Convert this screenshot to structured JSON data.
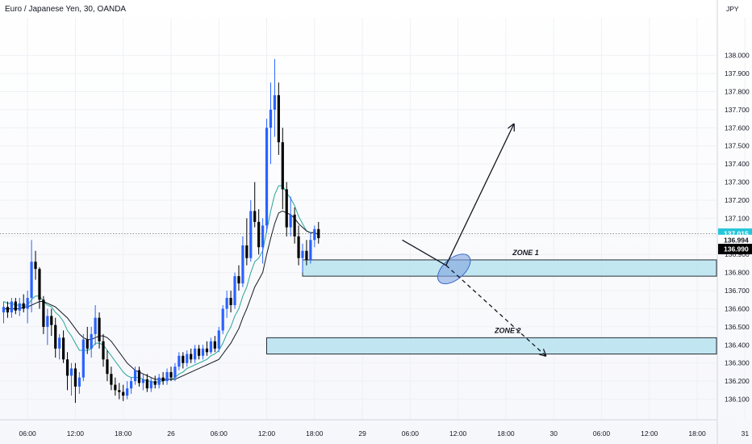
{
  "header": {
    "title": "Euro / Japanese Yen, 30, OANDA"
  },
  "chart_data": {
    "type": "candlestick",
    "symbol": "Euro / Japanese Yen",
    "interval": "30",
    "source": "OANDA",
    "currency_label": "JPY",
    "ylim": [
      136.04,
      138.15
    ],
    "y_ticks": [
      136.1,
      136.2,
      136.3,
      136.4,
      136.5,
      136.6,
      136.7,
      136.8,
      136.9,
      137.0,
      137.1,
      137.2,
      137.3,
      137.4,
      137.5,
      137.6,
      137.7,
      137.8,
      137.9,
      138.0
    ],
    "y_tick_labels": [
      "136.100",
      "136.200",
      "136.300",
      "136.400",
      "136.500",
      "136.600",
      "136.700",
      "136.800",
      "136.900",
      "137.000",
      "137.100",
      "137.200",
      "137.300",
      "137.400",
      "137.500",
      "137.600",
      "137.700",
      "137.800",
      "137.900",
      "138.000"
    ],
    "x_ticks": [
      {
        "bar": 6,
        "label": "06:00"
      },
      {
        "bar": 18,
        "label": "12:00"
      },
      {
        "bar": 30,
        "label": "18:00"
      },
      {
        "bar": 42,
        "label": "26"
      },
      {
        "bar": 54,
        "label": "06:00"
      },
      {
        "bar": 66,
        "label": "12:00"
      },
      {
        "bar": 78,
        "label": "18:00"
      },
      {
        "bar": 90,
        "label": "29"
      },
      {
        "bar": 102,
        "label": "06:00"
      },
      {
        "bar": 114,
        "label": "12:00"
      },
      {
        "bar": 126,
        "label": "18:00"
      },
      {
        "bar": 138,
        "label": "30"
      },
      {
        "bar": 150,
        "label": "06:00"
      },
      {
        "bar": 162,
        "label": "12:00"
      },
      {
        "bar": 174,
        "label": "18:00"
      },
      {
        "bar": 186,
        "label": "31"
      }
    ],
    "total_bars": 193,
    "candles_ohlc": [
      [
        136.58,
        136.64,
        136.52,
        136.61
      ],
      [
        136.61,
        136.64,
        136.55,
        136.58
      ],
      [
        136.58,
        136.66,
        136.55,
        136.64
      ],
      [
        136.64,
        136.66,
        136.57,
        136.59
      ],
      [
        136.59,
        136.66,
        136.56,
        136.63
      ],
      [
        136.63,
        136.68,
        136.58,
        136.6
      ],
      [
        136.6,
        136.7,
        136.52,
        136.66
      ],
      [
        136.66,
        136.98,
        136.58,
        136.86
      ],
      [
        136.86,
        136.92,
        136.76,
        136.82
      ],
      [
        136.82,
        136.83,
        136.6,
        136.65
      ],
      [
        136.65,
        136.67,
        136.46,
        136.5
      ],
      [
        136.5,
        136.6,
        136.4,
        136.56
      ],
      [
        136.56,
        136.6,
        136.45,
        136.51
      ],
      [
        136.51,
        136.55,
        136.33,
        136.38
      ],
      [
        136.38,
        136.46,
        136.32,
        136.44
      ],
      [
        136.44,
        136.48,
        136.3,
        136.32
      ],
      [
        136.32,
        136.36,
        136.15,
        136.23
      ],
      [
        136.23,
        136.3,
        136.12,
        136.27
      ],
      [
        136.27,
        136.3,
        136.08,
        136.17
      ],
      [
        136.17,
        136.25,
        136.13,
        136.22
      ],
      [
        136.22,
        136.46,
        136.2,
        136.43
      ],
      [
        136.43,
        136.5,
        136.35,
        136.38
      ],
      [
        136.38,
        136.5,
        136.33,
        136.46
      ],
      [
        136.46,
        136.62,
        136.4,
        136.55
      ],
      [
        136.55,
        136.58,
        136.38,
        136.42
      ],
      [
        136.42,
        136.46,
        136.28,
        136.32
      ],
      [
        136.32,
        136.37,
        136.2,
        136.24
      ],
      [
        136.24,
        136.28,
        136.15,
        136.18
      ],
      [
        136.18,
        136.22,
        136.12,
        136.15
      ],
      [
        136.15,
        136.19,
        136.1,
        136.14
      ],
      [
        136.14,
        136.18,
        136.09,
        136.12
      ],
      [
        136.12,
        136.2,
        136.1,
        136.16
      ],
      [
        136.16,
        136.22,
        136.13,
        136.2
      ],
      [
        136.2,
        136.28,
        136.18,
        136.26
      ],
      [
        136.26,
        136.28,
        136.17,
        136.19
      ],
      [
        136.19,
        136.24,
        136.15,
        136.21
      ],
      [
        136.21,
        136.24,
        136.14,
        136.16
      ],
      [
        136.16,
        136.22,
        136.14,
        136.2
      ],
      [
        136.2,
        136.23,
        136.16,
        136.18
      ],
      [
        136.18,
        136.24,
        136.16,
        136.22
      ],
      [
        136.22,
        136.25,
        136.18,
        136.2
      ],
      [
        136.2,
        136.27,
        136.18,
        136.25
      ],
      [
        136.25,
        136.28,
        136.2,
        136.22
      ],
      [
        136.22,
        136.3,
        136.2,
        136.28
      ],
      [
        136.28,
        136.36,
        136.26,
        136.34
      ],
      [
        136.34,
        136.36,
        136.27,
        136.3
      ],
      [
        136.3,
        136.37,
        136.28,
        136.35
      ],
      [
        136.35,
        136.38,
        136.3,
        136.32
      ],
      [
        136.32,
        136.4,
        136.3,
        136.38
      ],
      [
        136.38,
        136.4,
        136.32,
        136.34
      ],
      [
        136.34,
        136.4,
        136.32,
        136.38
      ],
      [
        136.38,
        136.42,
        136.34,
        136.36
      ],
      [
        136.36,
        136.44,
        136.35,
        136.42
      ],
      [
        136.42,
        136.45,
        136.36,
        136.38
      ],
      [
        136.38,
        136.5,
        136.36,
        136.48
      ],
      [
        136.48,
        136.62,
        136.46,
        136.6
      ],
      [
        136.6,
        136.7,
        136.55,
        136.66
      ],
      [
        136.66,
        136.7,
        136.58,
        136.62
      ],
      [
        136.62,
        136.8,
        136.6,
        136.78
      ],
      [
        136.78,
        136.84,
        136.7,
        136.74
      ],
      [
        136.74,
        137.0,
        136.72,
        136.95
      ],
      [
        136.95,
        137.1,
        136.84,
        136.88
      ],
      [
        136.88,
        137.2,
        136.86,
        137.14
      ],
      [
        137.14,
        137.3,
        137.05,
        137.08
      ],
      [
        137.08,
        137.15,
        136.9,
        136.94
      ],
      [
        136.94,
        137.1,
        136.85,
        137.06
      ],
      [
        137.06,
        137.65,
        137.02,
        137.6
      ],
      [
        137.6,
        137.85,
        137.4,
        137.7
      ],
      [
        137.7,
        137.98,
        137.55,
        137.78
      ],
      [
        137.78,
        137.85,
        137.45,
        137.52
      ],
      [
        137.52,
        137.6,
        137.15,
        137.26
      ],
      [
        137.26,
        137.3,
        137.0,
        137.05
      ],
      [
        137.05,
        137.22,
        137.0,
        137.12
      ],
      [
        137.12,
        137.16,
        136.96,
        137.0
      ],
      [
        137.0,
        137.06,
        136.84,
        136.88
      ],
      [
        136.88,
        136.96,
        136.8,
        136.92
      ],
      [
        136.92,
        136.98,
        136.84,
        136.87
      ],
      [
        136.87,
        137.02,
        136.85,
        136.98
      ],
      [
        136.98,
        137.06,
        136.94,
        137.04
      ],
      [
        137.04,
        137.08,
        136.96,
        136.99
      ]
    ],
    "series": [
      {
        "name": "",
        "color": "#26a69a",
        "values": [
          136.64,
          136.63,
          136.63,
          136.62,
          136.62,
          136.62,
          136.62,
          136.65,
          136.67,
          136.67,
          136.64,
          136.62,
          136.61,
          136.58,
          136.56,
          136.53,
          136.48,
          136.45,
          136.41,
          136.37,
          136.37,
          136.37,
          136.38,
          136.41,
          136.41,
          136.4,
          136.37,
          136.34,
          136.31,
          136.28,
          136.25,
          136.23,
          136.22,
          136.22,
          136.22,
          136.21,
          136.2,
          136.2,
          136.19,
          136.2,
          136.2,
          136.21,
          136.21,
          136.22,
          136.24,
          136.25,
          136.27,
          136.28,
          136.29,
          136.3,
          136.31,
          136.32,
          136.34,
          136.35,
          136.37,
          136.41,
          136.46,
          136.5,
          136.56,
          136.6,
          136.67,
          136.72,
          136.8,
          136.86,
          136.88,
          136.92,
          137.03,
          137.14,
          137.23,
          137.28,
          137.28,
          137.24,
          137.21,
          137.17,
          137.11,
          137.07,
          137.03,
          137.02,
          137.02,
          137.01
        ]
      },
      {
        "name": "",
        "color": "#131722",
        "values": [
          136.6,
          136.6,
          136.6,
          136.6,
          136.6,
          136.61,
          136.61,
          136.62,
          136.63,
          136.64,
          136.64,
          136.63,
          136.62,
          136.61,
          136.59,
          136.57,
          136.55,
          136.52,
          136.49,
          136.46,
          136.44,
          136.43,
          136.43,
          136.44,
          136.45,
          136.45,
          136.44,
          136.42,
          136.39,
          136.36,
          136.33,
          136.3,
          136.28,
          136.26,
          136.25,
          136.24,
          136.23,
          136.22,
          136.21,
          136.21,
          136.21,
          136.21,
          136.21,
          136.21,
          136.22,
          136.23,
          136.24,
          136.25,
          136.26,
          136.27,
          136.28,
          136.29,
          136.3,
          136.31,
          136.32,
          136.35,
          136.38,
          136.41,
          136.45,
          136.49,
          136.55,
          136.6,
          136.66,
          136.72,
          136.76,
          136.8,
          136.9,
          136.99,
          137.07,
          137.13,
          137.14,
          137.13,
          137.12,
          137.1,
          137.07,
          137.05,
          137.03,
          137.02,
          137.02,
          137.01
        ]
      }
    ],
    "annotations": {
      "zones": [
        {
          "label": "ZONE 1",
          "from_bar": 75,
          "to_bar": 193,
          "low": 136.78,
          "high": 136.87,
          "color": "#b7e3ee"
        },
        {
          "label": "ZONE 2",
          "from_bar": 66,
          "to_bar": 193,
          "low": 136.35,
          "high": 136.44,
          "color": "#b7e3ee"
        }
      ],
      "ellipse": {
        "bar": 113,
        "price": 136.82
      },
      "path_main": [
        {
          "bar": 100,
          "price": 136.98
        },
        {
          "bar": 111,
          "price": 136.84
        },
        {
          "bar": 128,
          "price": 137.62
        }
      ],
      "path_dashed": [
        {
          "bar": 111,
          "price": 136.84
        },
        {
          "bar": 136,
          "price": 136.34
        }
      ]
    },
    "last_price": 137.015,
    "price_badges": [
      {
        "text": "137.015",
        "price": 137.015,
        "bg": "#26c6da",
        "fg": "#ffffff"
      },
      {
        "text": "136.994",
        "price": 136.98,
        "bg": "#ffffff",
        "fg": "#131722"
      },
      {
        "text": "136.990",
        "price": 136.93,
        "bg": "#000000",
        "fg": "#ffffff"
      }
    ],
    "colors": {
      "up": "#2962ff",
      "down": "#000000",
      "grid": "#eef0f4"
    }
  }
}
